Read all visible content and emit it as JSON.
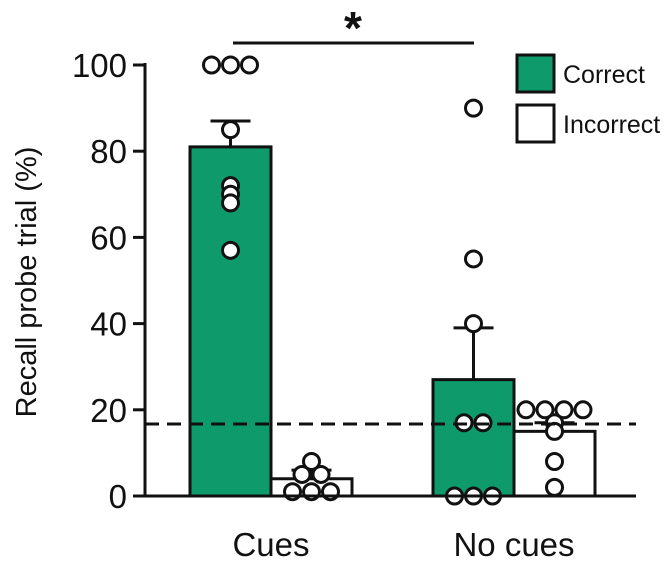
{
  "chart_data": {
    "type": "bar",
    "ylabel": "Recall probe  trial (%)",
    "ylim": [
      0,
      100
    ],
    "yticks": [
      "0",
      "20",
      "40",
      "60",
      "80",
      "100"
    ],
    "categories": [
      "Cues",
      "No cues"
    ],
    "series": [
      {
        "name": "Correct",
        "color": "#0f9a6b",
        "values": [
          81,
          27
        ],
        "errors": [
          6,
          12
        ],
        "points": [
          [
            100,
            100,
            100,
            85,
            72,
            70,
            68,
            57
          ],
          [
            90,
            55,
            40,
            17,
            17,
            0,
            0,
            0
          ]
        ]
      },
      {
        "name": "Incorrect",
        "color": "#ffffff",
        "values": [
          4,
          15
        ],
        "errors": [
          2,
          2
        ],
        "points": [
          [
            8,
            5,
            5,
            1,
            1,
            1
          ],
          [
            20,
            20,
            20,
            20,
            17,
            15,
            8,
            2
          ]
        ]
      }
    ],
    "chance_level": 16.7,
    "significance": {
      "label": "*",
      "between": [
        "Cues",
        "No cues"
      ]
    },
    "legend_position": "top-right"
  }
}
